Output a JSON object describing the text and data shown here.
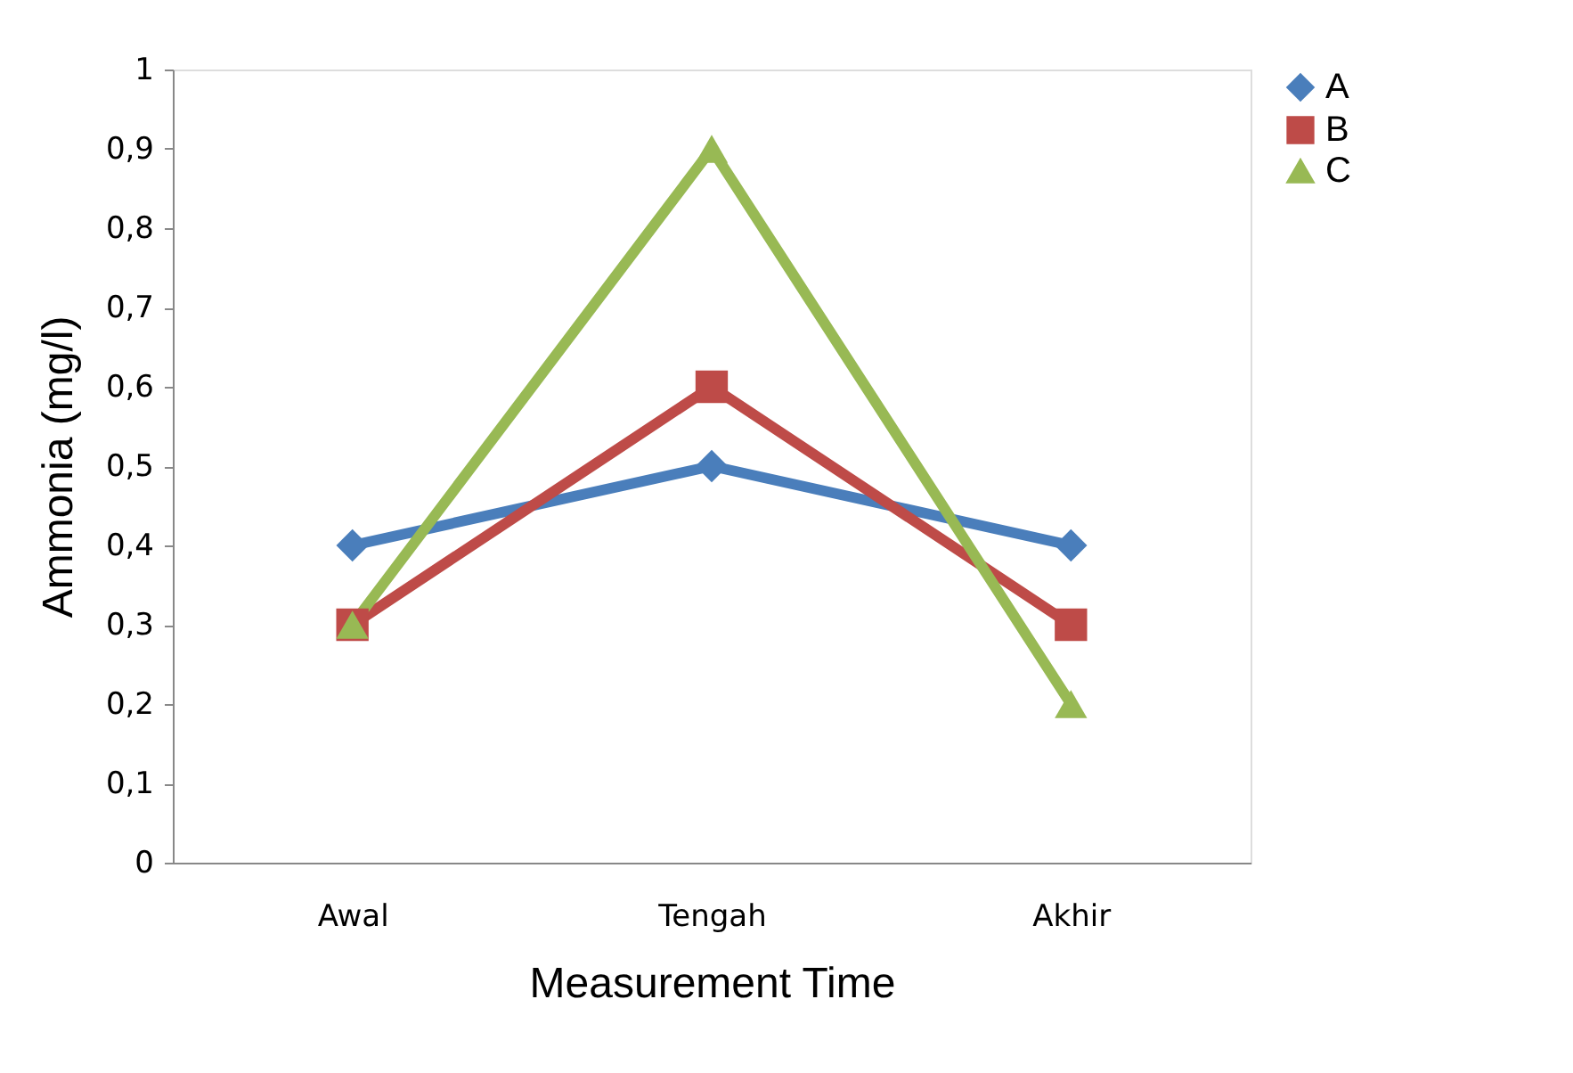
{
  "chart_data": {
    "type": "line",
    "xlabel": "Measurement Time",
    "ylabel": "Ammonia (mg/l)",
    "categories": [
      "Awal",
      "Tengah",
      "Akhir"
    ],
    "series": [
      {
        "name": "A",
        "color": "#4a7ebb",
        "marker": "diamond",
        "values": [
          0.4,
          0.5,
          0.4
        ]
      },
      {
        "name": "B",
        "color": "#be4b48",
        "marker": "square",
        "values": [
          0.3,
          0.6,
          0.3
        ]
      },
      {
        "name": "C",
        "color": "#98b954",
        "marker": "triangle",
        "values": [
          0.3,
          0.9,
          0.2
        ]
      }
    ],
    "ylim": [
      0,
      1
    ],
    "yticks": [
      0,
      {
        "value": 0.1,
        "label": "0,1"
      },
      {
        "value": 0.2,
        "label": "0,2"
      },
      {
        "value": 0.3,
        "label": "0,3"
      },
      {
        "value": 0.4,
        "label": "0,4"
      },
      {
        "value": 0.5,
        "label": "0,5"
      },
      {
        "value": 0.6,
        "label": "0,6"
      },
      {
        "value": 0.7,
        "label": "0,7"
      },
      {
        "value": 0.8,
        "label": "0,8"
      },
      {
        "value": 0.9,
        "label": "0,9"
      },
      1
    ],
    "grid": false,
    "legend": "right",
    "line_style": "solid"
  }
}
